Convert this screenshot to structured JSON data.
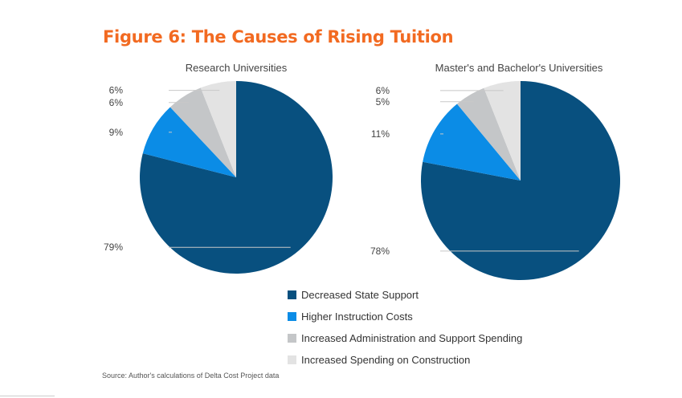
{
  "figure_title": "Figure 6: The Causes of Rising Tuition",
  "source": "Source: Author's calculations of Delta Cost Project data",
  "legend": [
    {
      "label": "Decreased State Support",
      "color": "#08507f"
    },
    {
      "label": "Higher Instruction Costs",
      "color": "#0b8ce6"
    },
    {
      "label": "Increased Administration and Support Spending",
      "color": "#c4c6c8"
    },
    {
      "label": "Increased Spending on Construction",
      "color": "#e3e3e3"
    }
  ],
  "chart_data": [
    {
      "type": "pie",
      "title": "Research Universities",
      "slices": [
        {
          "name": "Decreased State Support",
          "value": 79,
          "label": "79%"
        },
        {
          "name": "Higher Instruction Costs",
          "value": 9,
          "label": "9%"
        },
        {
          "name": "Increased Administration and Support Spending",
          "value": 6,
          "label": "6%"
        },
        {
          "name": "Increased Spending on Construction",
          "value": 6,
          "label": "6%"
        }
      ]
    },
    {
      "type": "pie",
      "title": "Master's and Bachelor's Universities",
      "slices": [
        {
          "name": "Decreased State Support",
          "value": 78,
          "label": "78%"
        },
        {
          "name": "Higher Instruction Costs",
          "value": 11,
          "label": "11%"
        },
        {
          "name": "Increased Administration and Support Spending",
          "value": 5,
          "label": "5%"
        },
        {
          "name": "Increased Spending on Construction",
          "value": 6,
          "label": "6%"
        }
      ]
    }
  ]
}
